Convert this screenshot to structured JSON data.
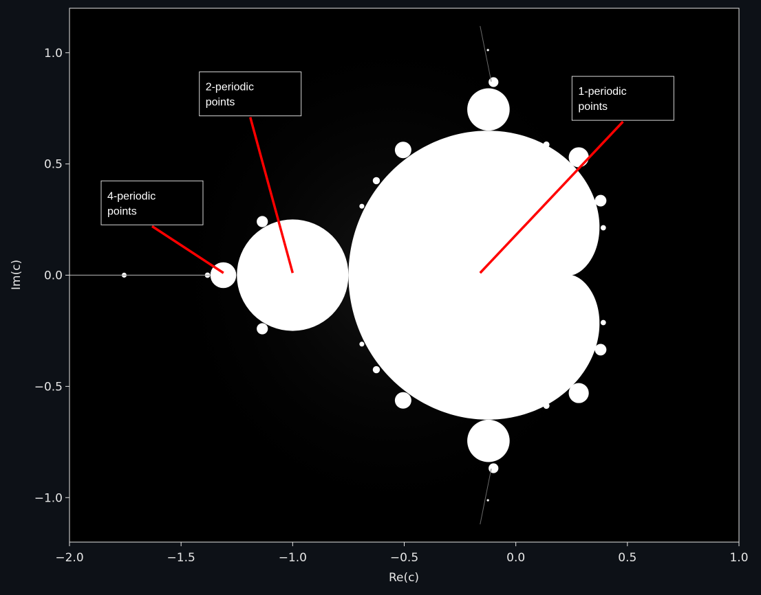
{
  "chart_data": {
    "type": "heatmap",
    "title": "",
    "xlabel": "Re(c)",
    "ylabel": "Im(c)",
    "xlim": [
      -2.0,
      1.0
    ],
    "ylim": [
      -1.2,
      1.2
    ],
    "xticks": [
      -2.0,
      -1.5,
      -1.0,
      -0.5,
      0.0,
      0.5,
      1.0
    ],
    "xtick_labels": [
      "−2.0",
      "−1.5",
      "−1.0",
      "−0.5",
      "0.0",
      "0.5",
      "1.0"
    ],
    "yticks": [
      1.0,
      0.5,
      0.0,
      -0.5,
      -1.0
    ],
    "ytick_labels": [
      "1.0",
      "0.5",
      "0.0",
      "−0.5",
      "−1.0"
    ],
    "grid": false,
    "colormap": "grayscale",
    "annotations": [
      {
        "id": "ann1",
        "line1": "1-periodic",
        "line2": "points",
        "point": [
          -0.16,
          0.01
        ],
        "text_anchor": [
          0.48,
          0.69
        ]
      },
      {
        "id": "ann2",
        "line1": "2-periodic",
        "line2": "points",
        "point": [
          -1.0,
          0.01
        ],
        "text_anchor": [
          -1.19,
          0.71
        ]
      },
      {
        "id": "ann4",
        "line1": "4-periodic",
        "line2": "points",
        "point": [
          -1.31,
          0.01
        ],
        "text_anchor": [
          -1.63,
          0.22
        ]
      }
    ]
  },
  "colors": {
    "background": "#0d1117",
    "plot_background": "#000000",
    "set": "#ffffff",
    "spine": "#e6e6e6",
    "annotation_line": "#ff0000",
    "annotation_box": "#000000"
  }
}
